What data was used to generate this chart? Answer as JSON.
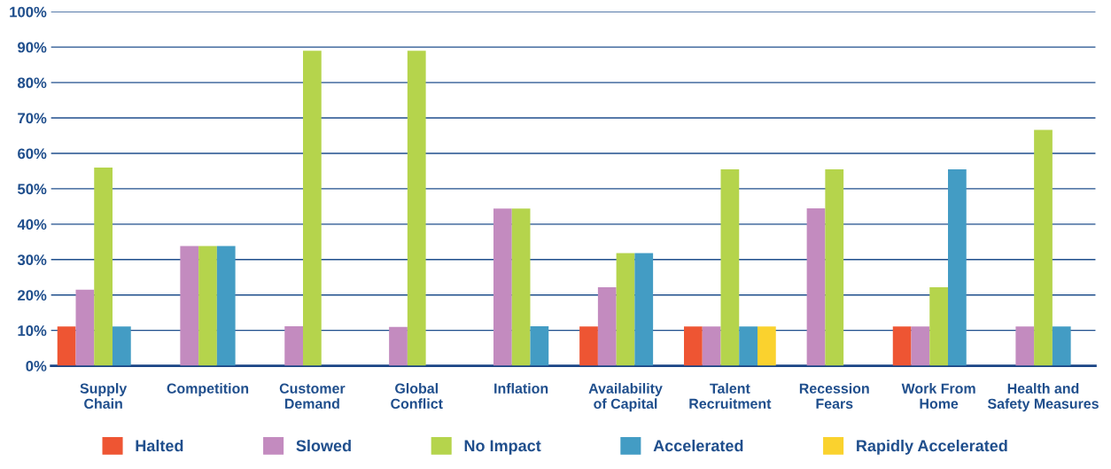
{
  "chart_data": {
    "type": "bar",
    "categories": [
      "Supply\nChain",
      "Competition",
      "Customer\nDemand",
      "Global\nConflict",
      "Inflation",
      "Availability\nof Capital",
      "Talent\nRecruitment",
      "Recession\nFears",
      "Work From\nHome",
      "Health and\nSafety Measures"
    ],
    "series": [
      {
        "name": "Halted",
        "color": "#ee5533",
        "values": [
          11.1,
          null,
          null,
          null,
          null,
          11.1,
          11.1,
          null,
          11.1,
          null
        ]
      },
      {
        "name": "Slowed",
        "color": "#c38bbf",
        "values": [
          21.5,
          33.8,
          11.2,
          11.0,
          44.4,
          22.2,
          11.1,
          44.5,
          11.1,
          11.1
        ]
      },
      {
        "name": "No Impact",
        "color": "#b5d44c",
        "values": [
          56.0,
          33.8,
          89.0,
          89.0,
          44.4,
          31.8,
          55.5,
          55.5,
          22.2,
          66.6
        ]
      },
      {
        "name": "Accelerated",
        "color": "#439cc4",
        "values": [
          11.1,
          33.8,
          null,
          null,
          11.2,
          31.8,
          11.1,
          null,
          55.5,
          11.1
        ]
      },
      {
        "name": "Rapidly Accelerated",
        "color": "#fad22e",
        "values": [
          null,
          null,
          null,
          null,
          null,
          null,
          11.1,
          null,
          null,
          null
        ]
      }
    ],
    "ylim": [
      0,
      100
    ],
    "yticks": [
      {
        "value": 0,
        "label": "0%"
      },
      {
        "value": 10,
        "label": "10%"
      },
      {
        "value": 20,
        "label": "20%"
      },
      {
        "value": 30,
        "label": "30%"
      },
      {
        "value": 40,
        "label": "40%"
      },
      {
        "value": 50,
        "label": "50%"
      },
      {
        "value": 60,
        "label": "60%"
      },
      {
        "value": 70,
        "label": "70%"
      },
      {
        "value": 80,
        "label": "80%"
      },
      {
        "value": 90,
        "label": "90%"
      },
      {
        "value": 100,
        "label": "100%"
      }
    ],
    "grid": "y",
    "legend": "bottom"
  }
}
